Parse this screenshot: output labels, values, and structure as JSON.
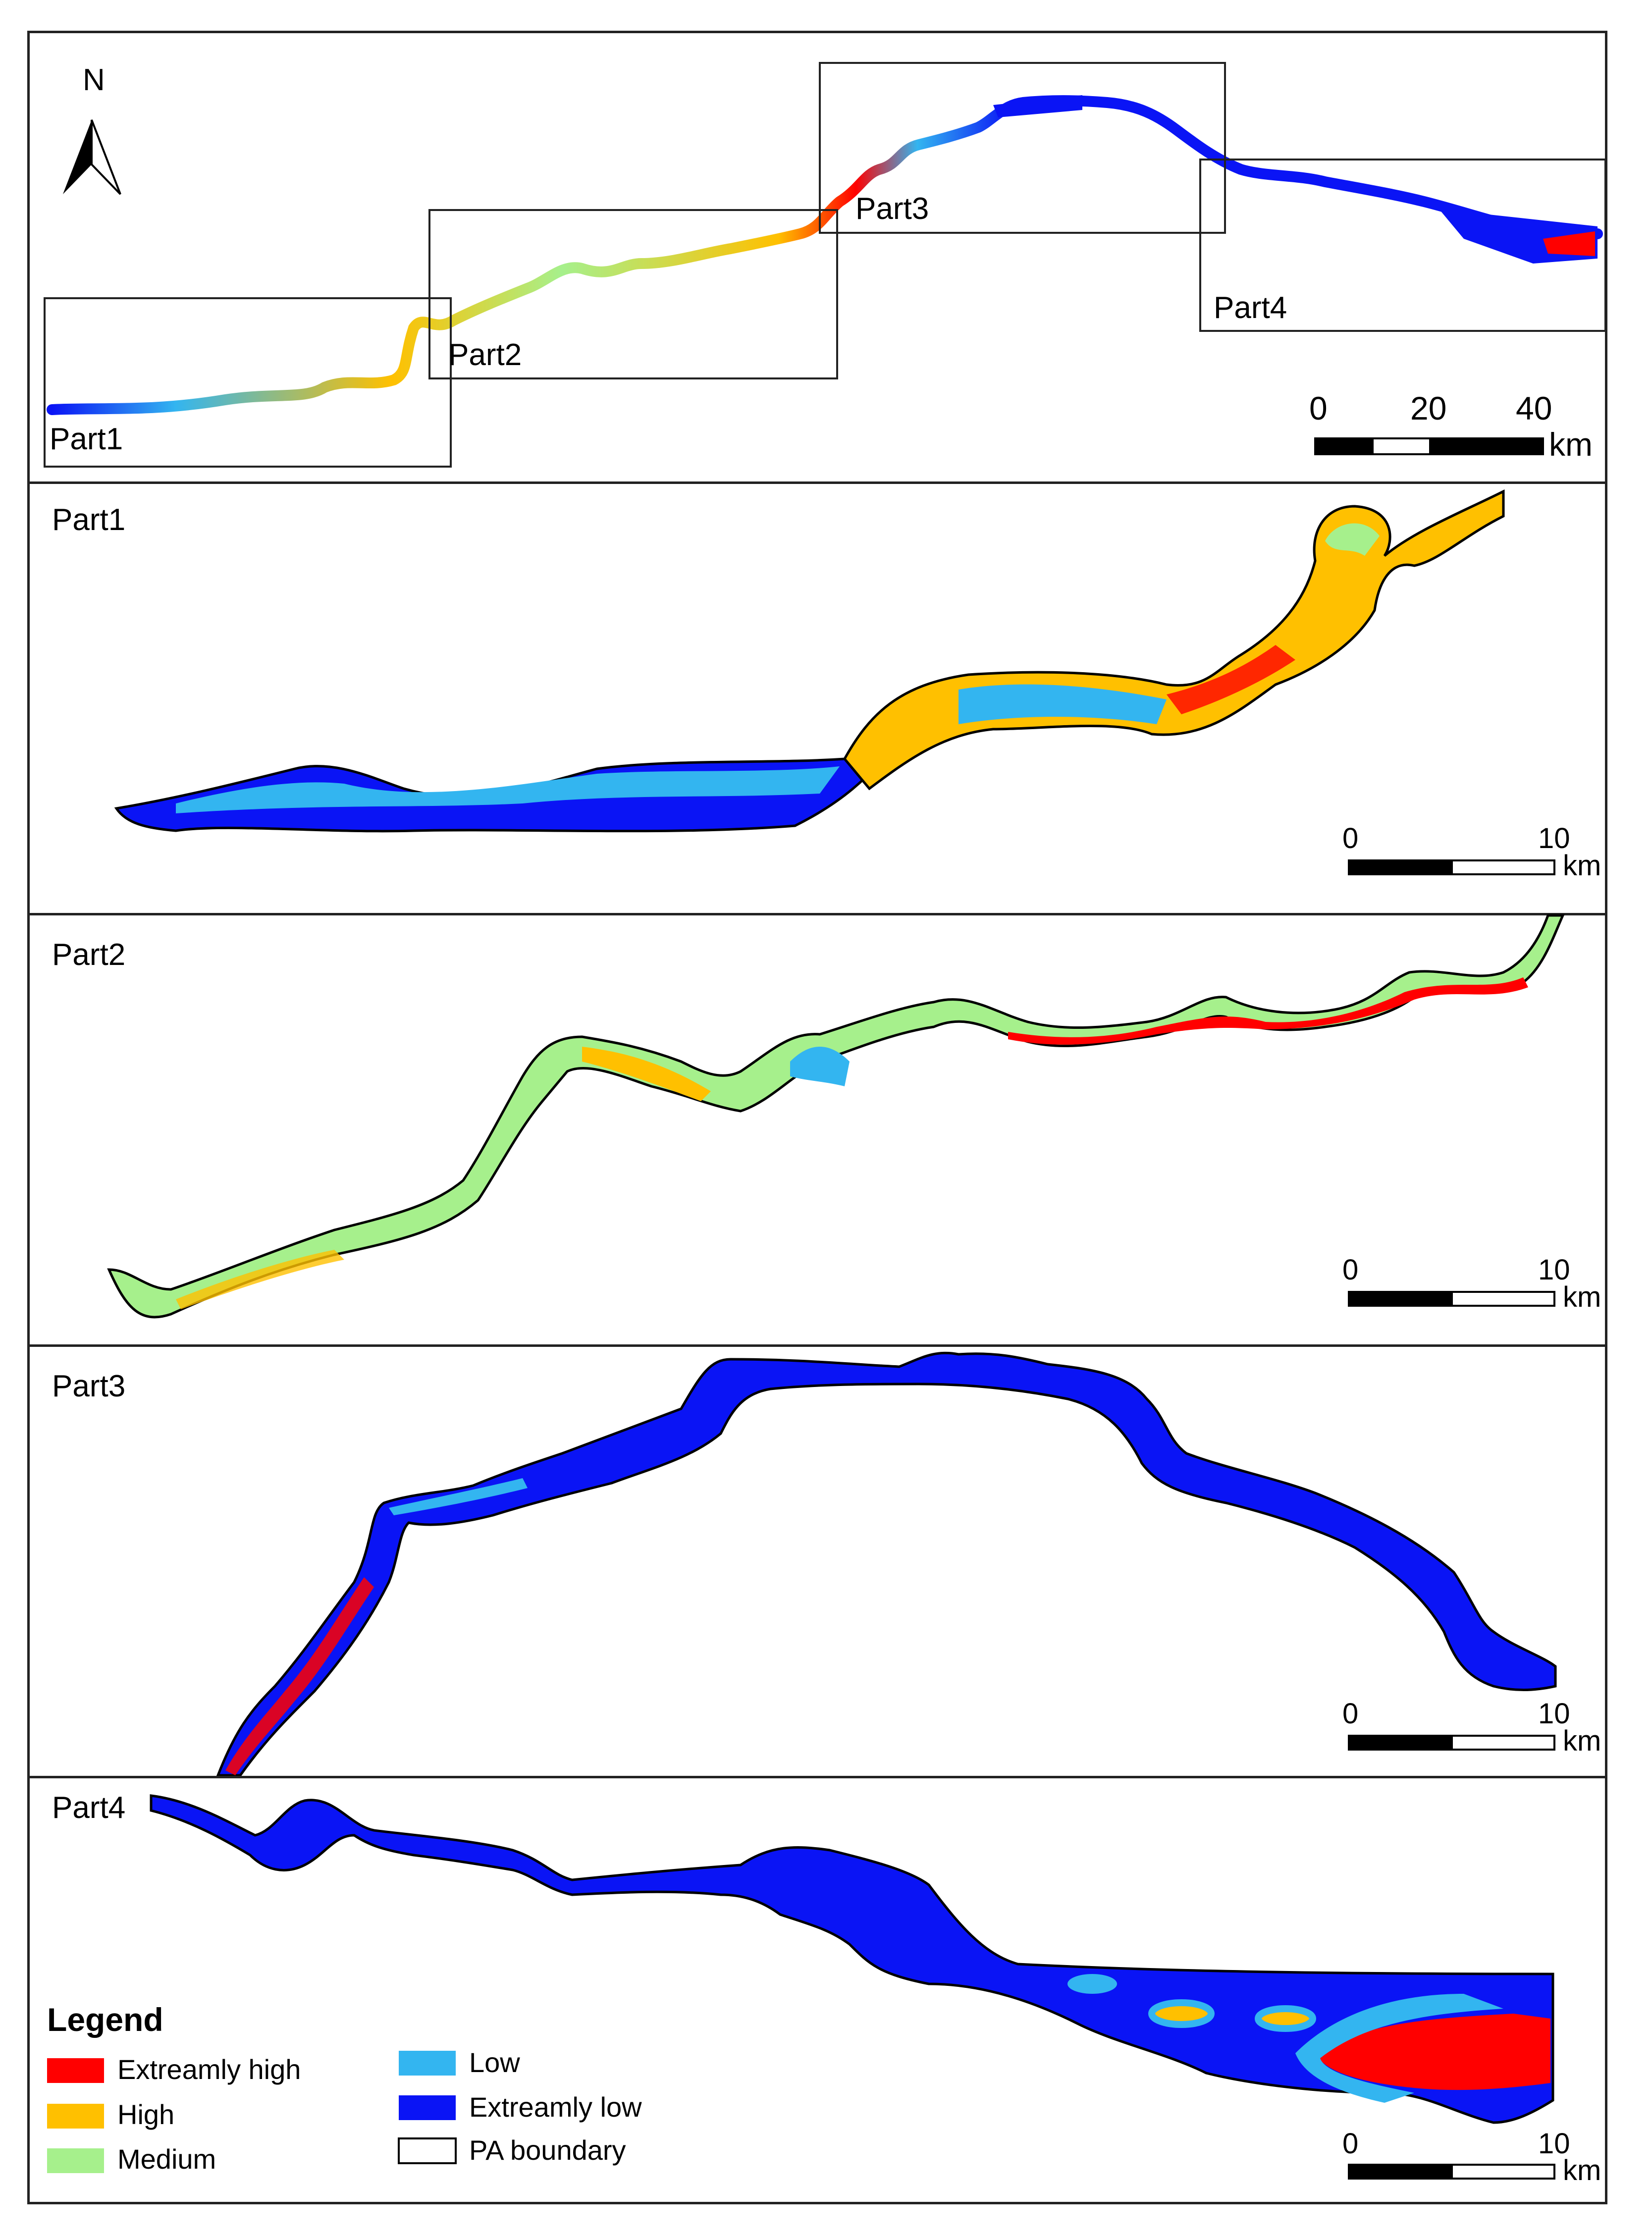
{
  "overview": {
    "north_label": "N",
    "parts": [
      "Part1",
      "Part2",
      "Part3",
      "Part4"
    ],
    "scale_ticks": [
      "0",
      "20",
      "40"
    ],
    "scale_unit": "km"
  },
  "panels": [
    {
      "title": "Part1",
      "scale_ticks": [
        "0",
        "10"
      ],
      "scale_unit": "km"
    },
    {
      "title": "Part2",
      "scale_ticks": [
        "0",
        "10"
      ],
      "scale_unit": "km"
    },
    {
      "title": "Part3",
      "scale_ticks": [
        "0",
        "10"
      ],
      "scale_unit": "km"
    },
    {
      "title": "Part4",
      "scale_ticks": [
        "0",
        "10"
      ],
      "scale_unit": "km"
    }
  ],
  "legend": {
    "title": "Legend",
    "items": [
      {
        "label": "Extreamly high",
        "color": "#ff0000"
      },
      {
        "label": "High",
        "color": "#ffc000"
      },
      {
        "label": "Medium",
        "color": "#a6f08c"
      },
      {
        "label": "Low",
        "color": "#33b5f0"
      },
      {
        "label": "Extreamly low",
        "color": "#0a14f5"
      },
      {
        "label": "PA boundary",
        "color": "#ffffff"
      }
    ]
  }
}
